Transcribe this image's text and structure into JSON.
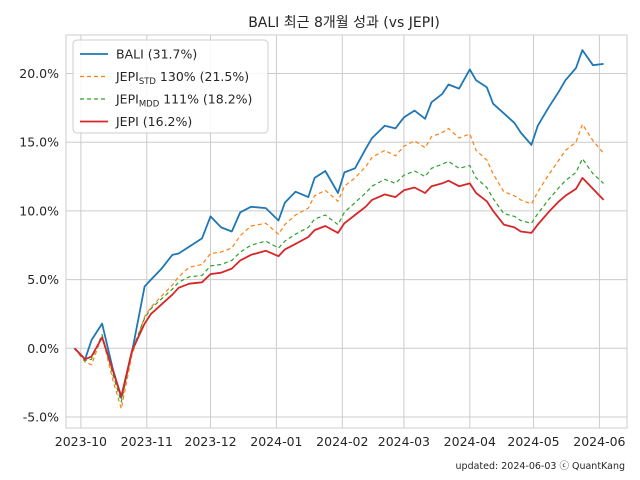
{
  "chart_data": {
    "type": "line",
    "title": "BALI 최근 8개월 성과 (vs JEPI)",
    "xlabel": "",
    "ylabel": "",
    "xlim": [
      "2023-09-24",
      "2024-06-14"
    ],
    "ylim": [
      -5.8,
      22.8
    ],
    "x_ticks": [
      {
        "date": "2023-10-01",
        "label": "2023-10"
      },
      {
        "date": "2023-11-01",
        "label": "2023-11"
      },
      {
        "date": "2023-12-01",
        "label": "2023-12"
      },
      {
        "date": "2024-01-01",
        "label": "2024-01"
      },
      {
        "date": "2024-02-01",
        "label": "2024-02"
      },
      {
        "date": "2024-03-01",
        "label": "2024-03"
      },
      {
        "date": "2024-04-01",
        "label": "2024-04"
      },
      {
        "date": "2024-05-01",
        "label": "2024-05"
      },
      {
        "date": "2024-06-01",
        "label": "2024-06"
      }
    ],
    "y_ticks": [
      {
        "value": -5,
        "label": "-5.0%"
      },
      {
        "value": 0,
        "label": "0.0%"
      },
      {
        "value": 5,
        "label": "5.0%"
      },
      {
        "value": 10,
        "label": "10.0%"
      },
      {
        "value": 15,
        "label": "15.0%"
      },
      {
        "value": 20,
        "label": "20.0%"
      }
    ],
    "grid": true,
    "legend_position": "top-left",
    "footer": "updated: 2024-06-03 ⓒ QuantKang",
    "dates": [
      "2023-09-28",
      "2023-10-03",
      "2023-10-06",
      "2023-10-11",
      "2023-10-16",
      "2023-10-20",
      "2023-10-25",
      "2023-10-31",
      "2023-11-03",
      "2023-11-08",
      "2023-11-13",
      "2023-11-16",
      "2023-11-21",
      "2023-11-27",
      "2023-12-01",
      "2023-12-06",
      "2023-12-11",
      "2023-12-15",
      "2023-12-20",
      "2023-12-27",
      "2024-01-02",
      "2024-01-05",
      "2024-01-10",
      "2024-01-16",
      "2024-01-19",
      "2024-01-24",
      "2024-01-30",
      "2024-02-02",
      "2024-02-07",
      "2024-02-12",
      "2024-02-15",
      "2024-02-21",
      "2024-02-26",
      "2024-03-01",
      "2024-03-06",
      "2024-03-11",
      "2024-03-14",
      "2024-03-19",
      "2024-03-22",
      "2024-03-27",
      "2024-04-01",
      "2024-04-04",
      "2024-04-09",
      "2024-04-12",
      "2024-04-17",
      "2024-04-22",
      "2024-04-25",
      "2024-04-30",
      "2024-05-03",
      "2024-05-08",
      "2024-05-13",
      "2024-05-16",
      "2024-05-21",
      "2024-05-24",
      "2024-05-29",
      "2024-06-03"
    ],
    "series": [
      {
        "name": "BALI (31.7%)",
        "label_parts": [
          "BALI (31.7%)"
        ],
        "color": "#1f77b4",
        "dash": "solid",
        "width": 1.8,
        "values": [
          0.0,
          -0.8,
          0.6,
          1.8,
          -1.5,
          -3.6,
          -0.3,
          4.5,
          5.0,
          5.8,
          6.8,
          6.9,
          7.4,
          8.0,
          9.6,
          8.8,
          8.5,
          9.9,
          10.3,
          10.2,
          9.3,
          10.6,
          11.4,
          11.0,
          12.4,
          12.9,
          11.3,
          12.8,
          13.1,
          14.5,
          15.3,
          16.2,
          16.0,
          16.8,
          17.3,
          16.7,
          17.9,
          18.5,
          19.2,
          18.9,
          20.3,
          19.5,
          19.0,
          17.8,
          17.1,
          16.4,
          15.7,
          14.8,
          16.2,
          17.5,
          18.7,
          19.5,
          20.4,
          21.7,
          20.6,
          20.7
        ]
      },
      {
        "name": "JEPI STD 130% (21.5%)",
        "label_parts": [
          "JEPI",
          "STD",
          " 130% (21.5%)"
        ],
        "color": "#ff7f0e",
        "dash": "4,3",
        "width": 1.2,
        "values": [
          0.0,
          -1.0,
          -1.2,
          0.9,
          -2.3,
          -4.4,
          -0.5,
          2.3,
          3.0,
          3.8,
          4.6,
          5.2,
          5.9,
          6.1,
          6.9,
          7.0,
          7.3,
          8.2,
          8.9,
          9.1,
          8.3,
          9.0,
          9.7,
          10.2,
          11.1,
          11.5,
          10.7,
          11.8,
          12.4,
          13.2,
          13.9,
          14.4,
          14.0,
          14.7,
          15.1,
          14.6,
          15.4,
          15.7,
          16.0,
          15.3,
          15.6,
          14.4,
          13.7,
          12.7,
          11.4,
          11.1,
          10.8,
          10.5,
          11.4,
          12.6,
          13.7,
          14.4,
          15.0,
          16.3,
          15.1,
          14.2
        ]
      },
      {
        "name": "JEPI MDD 111% (18.2%)",
        "label_parts": [
          "JEPI",
          "MDD",
          " 111% (18.2%)"
        ],
        "color": "#2ca02c",
        "dash": "4,3",
        "width": 1.2,
        "values": [
          0.0,
          -0.9,
          -0.8,
          1.0,
          -1.9,
          -3.9,
          -0.2,
          2.2,
          2.9,
          3.6,
          4.3,
          4.8,
          5.2,
          5.3,
          6.0,
          6.1,
          6.4,
          7.0,
          7.5,
          7.8,
          7.3,
          7.8,
          8.3,
          8.8,
          9.4,
          9.7,
          9.0,
          9.9,
          10.6,
          11.3,
          11.8,
          12.3,
          12.0,
          12.6,
          12.9,
          12.5,
          13.1,
          13.4,
          13.6,
          13.1,
          13.3,
          12.4,
          11.7,
          10.9,
          9.8,
          9.6,
          9.3,
          9.1,
          9.8,
          10.8,
          11.7,
          12.2,
          12.8,
          13.8,
          12.7,
          12.0
        ]
      },
      {
        "name": "JEPI (16.2%)",
        "label_parts": [
          "JEPI (16.2%)"
        ],
        "color": "#d62728",
        "dash": "solid",
        "width": 1.8,
        "values": [
          0.0,
          -0.8,
          -0.6,
          0.8,
          -1.6,
          -3.5,
          -0.2,
          1.8,
          2.5,
          3.2,
          3.9,
          4.4,
          4.7,
          4.8,
          5.4,
          5.5,
          5.8,
          6.4,
          6.8,
          7.1,
          6.7,
          7.2,
          7.6,
          8.1,
          8.6,
          8.9,
          8.4,
          9.1,
          9.7,
          10.3,
          10.8,
          11.2,
          11.0,
          11.5,
          11.7,
          11.3,
          11.8,
          12.0,
          12.2,
          11.8,
          12.0,
          11.3,
          10.7,
          10.0,
          9.0,
          8.8,
          8.5,
          8.4,
          9.0,
          9.9,
          10.7,
          11.1,
          11.6,
          12.4,
          11.6,
          10.8
        ]
      }
    ]
  }
}
